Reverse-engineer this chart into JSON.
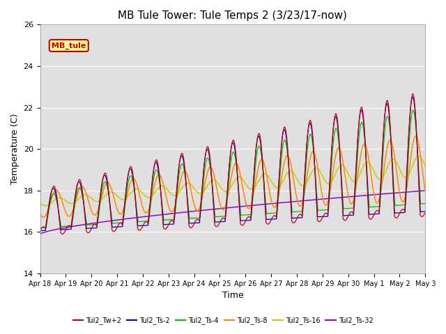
{
  "title": "MB Tule Tower: Tule Temps 2 (3/23/17-now)",
  "xlabel": "Time",
  "ylabel": "Temperature (C)",
  "ylim": [
    14,
    26
  ],
  "xlim": [
    0,
    15
  ],
  "x_tick_labels": [
    "Apr 18",
    "Apr 19",
    "Apr 20",
    "Apr 21",
    "Apr 22",
    "Apr 23",
    "Apr 24",
    "Apr 25",
    "Apr 26",
    "Apr 27",
    "Apr 28",
    "Apr 29",
    "Apr 30",
    "May 1",
    "May 2",
    "May 3"
  ],
  "series_labels": [
    "Tul2_Tw+2",
    "Tul2_Ts-2",
    "Tul2_Ts-4",
    "Tul2_Ts-8",
    "Tul2_Ts-16",
    "Tul2_Ts-32"
  ],
  "series_colors": [
    "#cc0000",
    "#0000cc",
    "#00bb00",
    "#ff8800",
    "#cccc00",
    "#9900cc"
  ],
  "legend_label": "MB_tule",
  "legend_box_color": "#ffff99",
  "legend_box_edge": "#cc0000",
  "background_color": "#e0e0e0",
  "grid_color": "#ffffff",
  "title_fontsize": 11
}
